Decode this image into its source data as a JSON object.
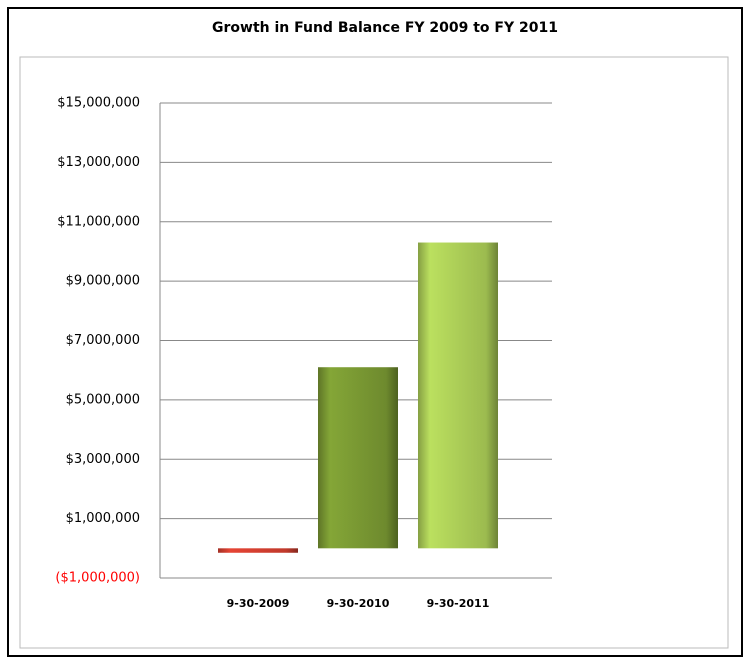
{
  "chart_data": {
    "type": "bar",
    "title": "Growth in Fund Balance FY 2009 to FY 2011",
    "categories": [
      "9-30-2009",
      "9-30-2010",
      "9-30-2011"
    ],
    "values": [
      -150000,
      6100000,
      10300000
    ],
    "colors": [
      "#c0392b",
      "#6e8a2e",
      "#9cbb4f"
    ],
    "ylim": [
      -1000000,
      15000000
    ],
    "yticks": [
      {
        "value": -1000000,
        "label": "($1,000,000)"
      },
      {
        "value": 1000000,
        "label": "$1,000,000"
      },
      {
        "value": 3000000,
        "label": "$3,000,000"
      },
      {
        "value": 5000000,
        "label": "$5,000,000"
      },
      {
        "value": 7000000,
        "label": "$7,000,000"
      },
      {
        "value": 9000000,
        "label": "$9,000,000"
      },
      {
        "value": 11000000,
        "label": "$11,000,000"
      },
      {
        "value": 13000000,
        "label": "$13,000,000"
      },
      {
        "value": 15000000,
        "label": "$15,000,000"
      }
    ],
    "negative_color": "#ff0000",
    "grid": true
  }
}
